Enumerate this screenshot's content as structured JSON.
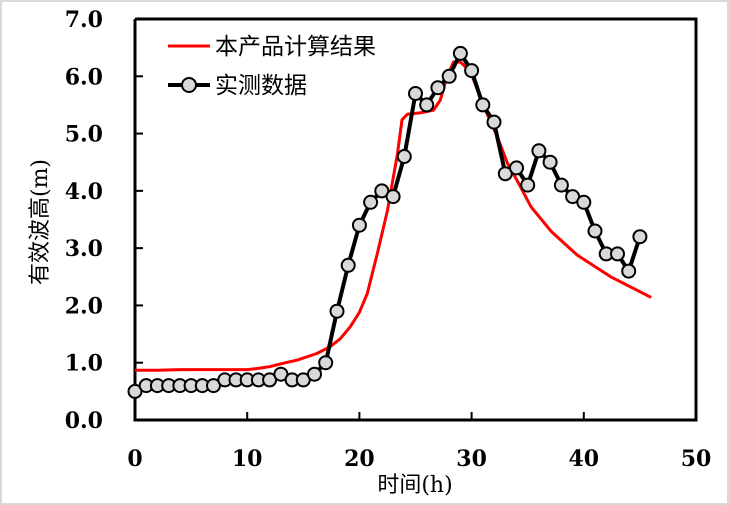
{
  "chart_data": {
    "type": "line",
    "title": "",
    "xlabel": "时间(h)",
    "ylabel": "有效波高(m)",
    "xlim": [
      0,
      50
    ],
    "ylim": [
      0.0,
      7.0
    ],
    "xticks": [
      0,
      10,
      20,
      30,
      40,
      50
    ],
    "xtick_labels": [
      "0",
      "10",
      "20",
      "30",
      "40",
      "50"
    ],
    "yticks": [
      0,
      1,
      2,
      3,
      4,
      5,
      6,
      7
    ],
    "ytick_labels": [
      "0.0",
      "1.0",
      "2.0",
      "3.0",
      "4.0",
      "5.0",
      "6.0",
      "7.0"
    ],
    "grid": false,
    "legend_position": "top-left",
    "series": [
      {
        "name": "本产品计算结果",
        "color": "#ff0000",
        "marker": "none",
        "x": [
          0,
          2,
          4,
          6,
          8,
          10,
          11,
          12,
          13.2,
          14.5,
          16.2,
          17.4,
          18.3,
          19.2,
          20,
          20.7,
          21.6,
          22.5,
          23.4,
          23.8,
          24.3,
          25.4,
          26.6,
          27.2,
          27.8,
          28.4,
          29,
          29.9,
          31.1,
          32.3,
          33.2,
          34.2,
          35.3,
          37.1,
          39.4,
          42.4,
          46
        ],
        "y": [
          0.87,
          0.87,
          0.88,
          0.88,
          0.88,
          0.88,
          0.9,
          0.93,
          0.99,
          1.05,
          1.16,
          1.28,
          1.42,
          1.63,
          1.88,
          2.21,
          2.91,
          3.66,
          4.65,
          5.24,
          5.34,
          5.36,
          5.41,
          5.58,
          5.99,
          6.25,
          6.25,
          6.08,
          5.47,
          4.94,
          4.48,
          4.13,
          3.72,
          3.29,
          2.88,
          2.5,
          2.14
        ]
      },
      {
        "name": "实测数据",
        "color": "#000000",
        "marker": "circle",
        "marker_fill": "#d9d9d9",
        "x": [
          0,
          1,
          2,
          3,
          4,
          5,
          6,
          7,
          8,
          9,
          10,
          11,
          12,
          13,
          14,
          15,
          16,
          17,
          18,
          19,
          20,
          21,
          22,
          23,
          24,
          25,
          26,
          27,
          28,
          29,
          30,
          31,
          32,
          33,
          34,
          35,
          36,
          37,
          38,
          39,
          40,
          41,
          42,
          43,
          44,
          45
        ],
        "y": [
          0.5,
          0.6,
          0.6,
          0.6,
          0.6,
          0.6,
          0.6,
          0.6,
          0.7,
          0.7,
          0.7,
          0.7,
          0.7,
          0.8,
          0.7,
          0.7,
          0.8,
          1.0,
          1.9,
          2.7,
          3.4,
          3.8,
          4.0,
          3.9,
          4.6,
          5.7,
          5.5,
          5.8,
          6.0,
          6.4,
          6.1,
          5.5,
          5.2,
          4.3,
          4.4,
          4.1,
          4.7,
          4.5,
          4.1,
          3.9,
          3.8,
          3.3,
          2.9,
          2.9,
          2.6,
          3.2
        ]
      }
    ]
  }
}
